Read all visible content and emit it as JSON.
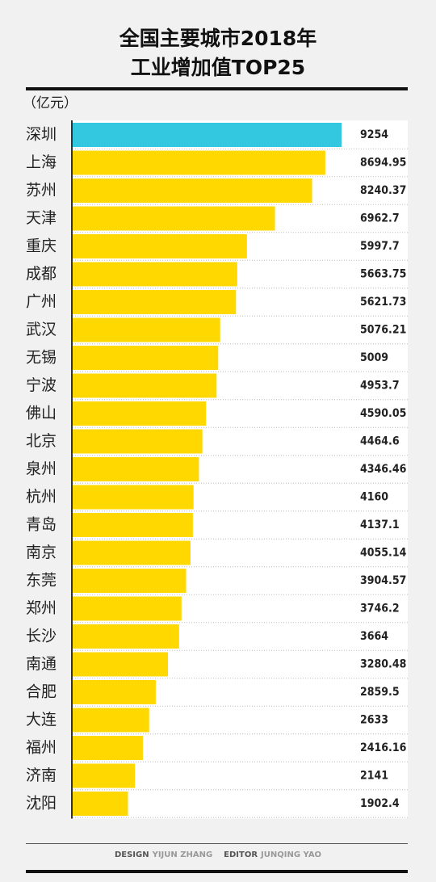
{
  "chart_data": {
    "type": "bar",
    "orientation": "horizontal",
    "title_lines": [
      "全国主要城市2018年",
      "工业增加值TOP25"
    ],
    "unit": "（亿元）",
    "categories": [
      "深圳",
      "上海",
      "苏州",
      "天津",
      "重庆",
      "成都",
      "广州",
      "武汉",
      "无锡",
      "宁波",
      "佛山",
      "北京",
      "泉州",
      "杭州",
      "青岛",
      "南京",
      "东莞",
      "郑州",
      "长沙",
      "南通",
      "合肥",
      "大连",
      "福州",
      "济南",
      "沈阳"
    ],
    "values": [
      9254,
      8694.95,
      8240.37,
      6962.7,
      5997.7,
      5663.75,
      5621.73,
      5076.21,
      5009,
      4953.7,
      4590.05,
      4464.6,
      4346.46,
      4160,
      4137.1,
      4055.14,
      3904.57,
      3746.2,
      3664,
      3280.48,
      2859.5,
      2633,
      2416.16,
      2141,
      1902.4
    ],
    "colors": [
      "#33c8e0",
      "#ffd800",
      "#ffd800",
      "#ffd800",
      "#ffd800",
      "#ffd800",
      "#ffd800",
      "#ffd800",
      "#ffd800",
      "#ffd800",
      "#ffd800",
      "#ffd800",
      "#ffd800",
      "#ffd800",
      "#ffd800",
      "#ffd800",
      "#ffd800",
      "#ffd800",
      "#ffd800",
      "#ffd800",
      "#ffd800",
      "#ffd800",
      "#ffd800",
      "#ffd800",
      "#ffd800"
    ],
    "footer": [
      {
        "text": "DESIGN",
        "color": "#555555"
      },
      {
        "text": "YIJUN ZHANG",
        "color": "#999999"
      },
      {
        "text": "EDITOR",
        "color": "#555555"
      },
      {
        "text": "JUNQING YAO",
        "color": "#999999"
      }
    ]
  }
}
